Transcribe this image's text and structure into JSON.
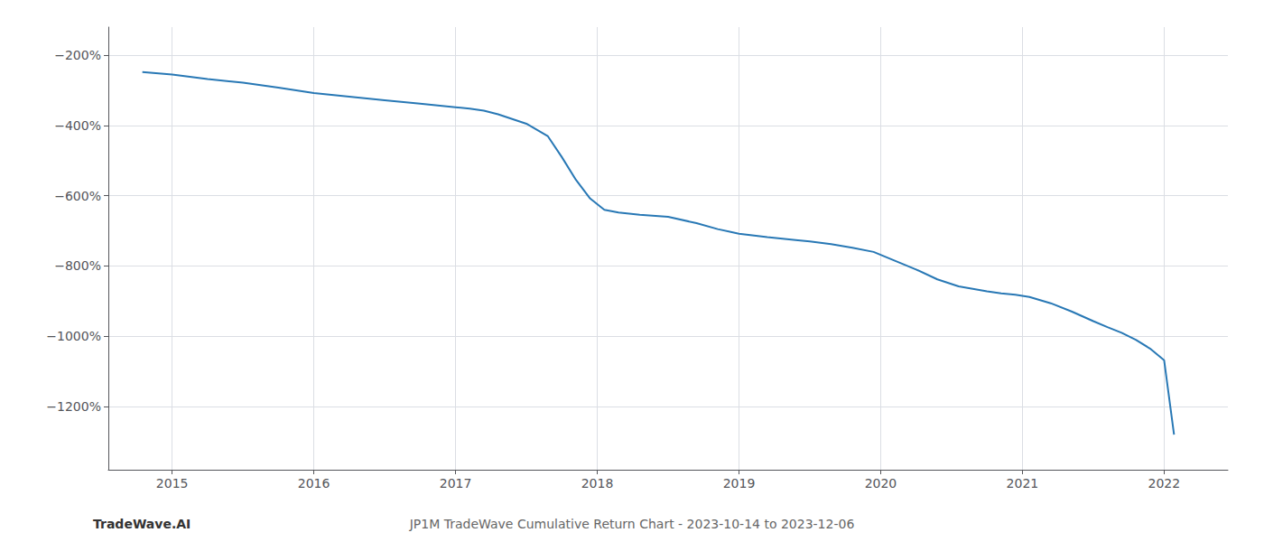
{
  "chart_data": {
    "type": "line",
    "title": "JP1M TradeWave Cumulative Return Chart - 2023-10-14 to 2023-12-06",
    "annotations": [
      "TradeWave.AI"
    ],
    "x": [
      2014.79,
      2015.0,
      2015.25,
      2015.5,
      2015.75,
      2016.0,
      2016.25,
      2016.5,
      2016.75,
      2017.0,
      2017.1,
      2017.2,
      2017.3,
      2017.5,
      2017.65,
      2017.75,
      2017.85,
      2017.95,
      2018.05,
      2018.15,
      2018.3,
      2018.5,
      2018.7,
      2018.85,
      2019.0,
      2019.2,
      2019.4,
      2019.5,
      2019.65,
      2019.8,
      2019.95,
      2020.1,
      2020.25,
      2020.4,
      2020.55,
      2020.65,
      2020.75,
      2020.85,
      2020.95,
      2021.05,
      2021.2,
      2021.35,
      2021.5,
      2021.6,
      2021.7,
      2021.8,
      2021.9,
      2022.0,
      2022.07
    ],
    "values": [
      -248,
      -255,
      -268,
      -278,
      -292,
      -308,
      -318,
      -328,
      -338,
      -348,
      -352,
      -358,
      -368,
      -395,
      -430,
      -490,
      -555,
      -608,
      -640,
      -648,
      -654,
      -660,
      -678,
      -695,
      -708,
      -718,
      -726,
      -730,
      -738,
      -748,
      -760,
      -785,
      -810,
      -838,
      -858,
      -865,
      -872,
      -878,
      -882,
      -888,
      -906,
      -930,
      -957,
      -974,
      -990,
      -1010,
      -1035,
      -1068,
      -1280
    ],
    "color": "#2878b5",
    "xlim": [
      2014.55,
      2022.45
    ],
    "ylim": [
      -1380,
      -120
    ],
    "xticks": [
      2015,
      2016,
      2017,
      2018,
      2019,
      2020,
      2021,
      2022
    ],
    "yticks": [
      {
        "value": -200,
        "label": "−200%"
      },
      {
        "value": -400,
        "label": "−400%"
      },
      {
        "value": -600,
        "label": "−600%"
      },
      {
        "value": -800,
        "label": "−800%"
      },
      {
        "value": -1000,
        "label": "−1000%"
      },
      {
        "value": -1200,
        "label": "−1200%"
      }
    ],
    "grid": true
  }
}
